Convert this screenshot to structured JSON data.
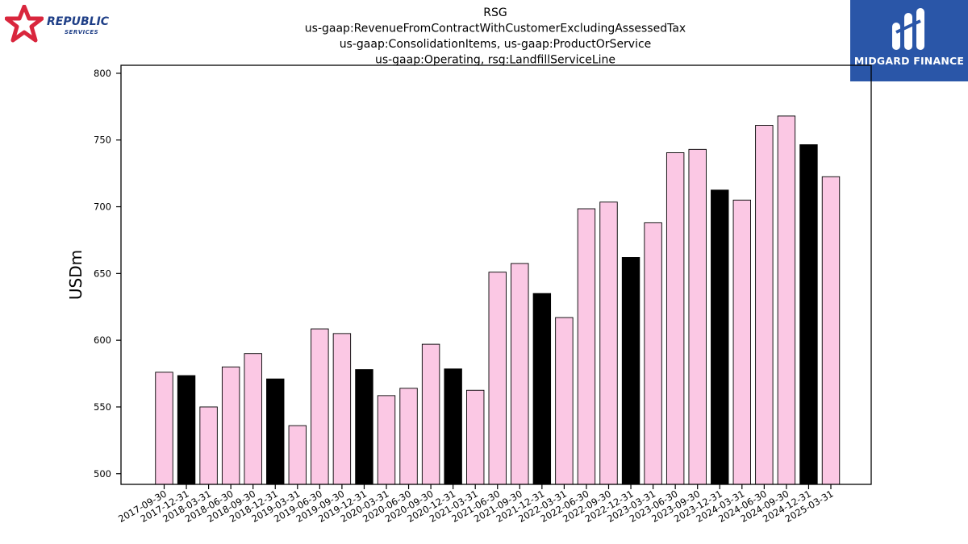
{
  "logos": {
    "left": {
      "name": "REPUBLIC",
      "sub": "SERVICES",
      "color": "#1f3f87",
      "star_color": "#d9263d"
    },
    "right": {
      "name": "MIDGARD FINANCE",
      "bg": "#2a56a8"
    }
  },
  "colors": {
    "q4_bar": "#000000",
    "other_bar": "#fbc8e4",
    "bar_edge": "#000000"
  },
  "chart_data": {
    "type": "bar",
    "title_lines": [
      "RSG",
      "us-gaap:RevenueFromContractWithCustomerExcludingAssessedTax",
      "us-gaap:ConsolidationItems, us-gaap:ProductOrService",
      "us-gaap:Operating, rsg:LandfillServiceLine"
    ],
    "ylabel": "USDm",
    "xlabel": "",
    "ylim": [
      492,
      806
    ],
    "yticks": [
      500,
      550,
      600,
      650,
      700,
      750,
      800
    ],
    "grid": false,
    "categories": [
      "2017-09-30",
      "2017-12-31",
      "2018-03-31",
      "2018-06-30",
      "2018-09-30",
      "2018-12-31",
      "2019-03-31",
      "2019-06-30",
      "2019-09-30",
      "2019-12-31",
      "2020-03-31",
      "2020-06-30",
      "2020-09-30",
      "2020-12-31",
      "2021-03-31",
      "2021-06-30",
      "2021-09-30",
      "2021-12-31",
      "2022-03-31",
      "2022-06-30",
      "2022-09-30",
      "2022-12-31",
      "2023-03-31",
      "2023-06-30",
      "2023-09-30",
      "2023-12-31",
      "2024-03-31",
      "2024-06-30",
      "2024-09-30",
      "2024-12-31",
      "2025-03-31"
    ],
    "values": [
      576,
      573.5,
      550,
      580,
      590,
      571,
      536,
      608.5,
      605,
      578,
      558.5,
      564,
      597,
      578.5,
      562.5,
      651,
      657.5,
      635,
      617,
      698.5,
      703.5,
      662,
      688,
      740.5,
      743,
      712.5,
      705,
      761,
      768,
      746.5,
      722.5
    ]
  }
}
